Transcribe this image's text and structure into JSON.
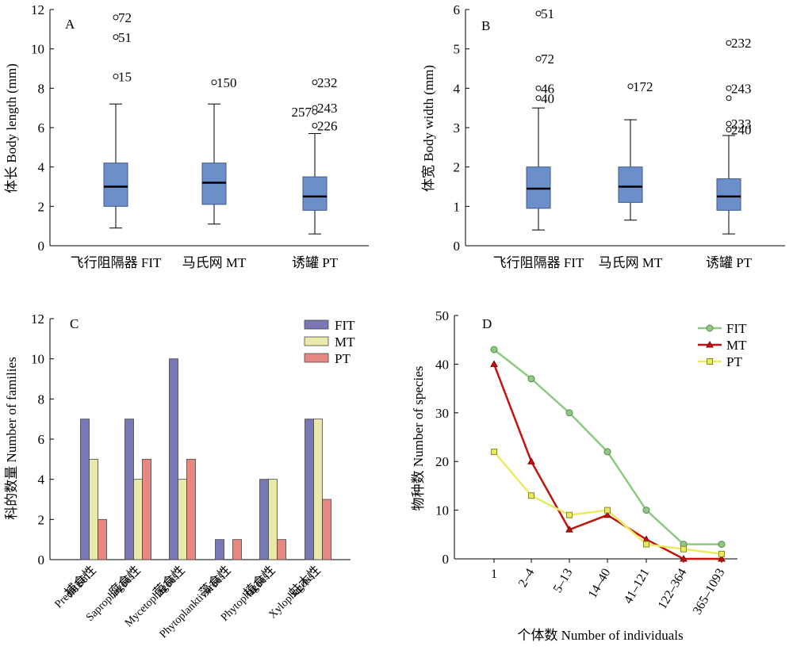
{
  "chart_data": [
    {
      "panel": "A",
      "type": "box",
      "ylabel": "体长 Body length (mm)",
      "ylim": [
        0,
        12
      ],
      "yticks": [
        "0",
        "2",
        "4",
        "6",
        "8",
        "10",
        "12"
      ],
      "categories": [
        "飞行阻隔器 FIT",
        "马氏网 MT",
        "诱罐 PT"
      ],
      "box_color": "#6b8fc9",
      "boxes": [
        {
          "whisker_low": 0.9,
          "q1": 2.0,
          "median": 3.0,
          "q3": 4.2,
          "whisker_high": 7.2
        },
        {
          "whisker_low": 1.1,
          "q1": 2.1,
          "median": 3.2,
          "q3": 4.2,
          "whisker_high": 7.2
        },
        {
          "whisker_low": 0.6,
          "q1": 1.8,
          "median": 2.5,
          "q3": 3.5,
          "whisker_high": 5.7
        }
      ],
      "outliers": [
        {
          "cat": 0,
          "y": 11.6,
          "label": "72"
        },
        {
          "cat": 0,
          "y": 10.6,
          "label": "51"
        },
        {
          "cat": 0,
          "y": 8.6,
          "label": "15"
        },
        {
          "cat": 1,
          "y": 8.3,
          "label": "150"
        },
        {
          "cat": 2,
          "y": 8.3,
          "label": "232"
        },
        {
          "cat": 2,
          "y": 7.0,
          "label": "243"
        },
        {
          "cat": 2,
          "y": 6.8,
          "label": "257"
        },
        {
          "cat": 2,
          "y": 6.1,
          "label": "226"
        }
      ]
    },
    {
      "panel": "B",
      "type": "box",
      "ylabel": "体宽 Body width (mm)",
      "ylim": [
        0,
        6
      ],
      "yticks": [
        "0",
        "1",
        "2",
        "3",
        "4",
        "5",
        "6"
      ],
      "categories": [
        "飞行阻隔器 FIT",
        "马氏网 MT",
        "诱罐 PT"
      ],
      "box_color": "#6b8fc9",
      "boxes": [
        {
          "whisker_low": 0.4,
          "q1": 0.95,
          "median": 1.45,
          "q3": 2.0,
          "whisker_high": 3.5
        },
        {
          "whisker_low": 0.65,
          "q1": 1.1,
          "median": 1.5,
          "q3": 2.0,
          "whisker_high": 3.2
        },
        {
          "whisker_low": 0.3,
          "q1": 0.9,
          "median": 1.25,
          "q3": 1.7,
          "whisker_high": 2.8
        }
      ],
      "outliers": [
        {
          "cat": 0,
          "y": 5.9,
          "label": "51"
        },
        {
          "cat": 0,
          "y": 4.75,
          "label": "72"
        },
        {
          "cat": 0,
          "y": 4.0,
          "label": "46"
        },
        {
          "cat": 0,
          "y": 3.75,
          "label": "40"
        },
        {
          "cat": 1,
          "y": 4.05,
          "label": "172"
        },
        {
          "cat": 2,
          "y": 5.15,
          "label": "232"
        },
        {
          "cat": 2,
          "y": 4.0,
          "label": "243"
        },
        {
          "cat": 2,
          "y": 3.75,
          "label": ""
        },
        {
          "cat": 2,
          "y": 3.1,
          "label": "233"
        },
        {
          "cat": 2,
          "y": 2.95,
          "label": "240"
        }
      ]
    },
    {
      "panel": "C",
      "type": "bar",
      "ylabel": "科的数量 Number of families",
      "ylim": [
        0,
        12
      ],
      "yticks": [
        "0",
        "2",
        "4",
        "6",
        "8",
        "10",
        "12"
      ],
      "categories": [
        {
          "zh": "捕食性",
          "en": "Predatism"
        },
        {
          "zh": "腐食性",
          "en": "Saprophagous"
        },
        {
          "zh": "菌食性",
          "en": "Mycetophagous"
        },
        {
          "zh": "藻食性",
          "en": "Phytoplanktivorous"
        },
        {
          "zh": "植食性",
          "en": "Phytophagous"
        },
        {
          "zh": "蛀木性",
          "en": "Xylophagous"
        }
      ],
      "series": [
        {
          "name": "FIT",
          "color": "#7a78b4",
          "values": [
            7,
            7,
            10,
            1,
            4,
            7
          ]
        },
        {
          "name": "MT",
          "color": "#e9e9a9",
          "values": [
            5,
            4,
            4,
            0,
            4,
            7
          ]
        },
        {
          "name": "PT",
          "color": "#e88882",
          "values": [
            2,
            5,
            5,
            1,
            1,
            3
          ]
        }
      ],
      "legend": "top-right"
    },
    {
      "panel": "D",
      "type": "line",
      "xlabel": "个体数 Number of individuals",
      "ylabel": "物种数 Number of species",
      "ylim": [
        0,
        50
      ],
      "yticks": [
        "0",
        "10",
        "20",
        "30",
        "40",
        "50"
      ],
      "categories": [
        "1",
        "2–4",
        "5–13",
        "14–40",
        "41–121",
        "122–364",
        "365–1093"
      ],
      "series": [
        {
          "name": "FIT",
          "color": "#8ec983",
          "marker": "circle",
          "values": [
            43,
            37,
            30,
            22,
            10,
            3,
            3
          ]
        },
        {
          "name": "MT",
          "color": "#c0140c",
          "marker": "triangle",
          "values": [
            40,
            20,
            6,
            9,
            4,
            0,
            0
          ]
        },
        {
          "name": "PT",
          "color": "#eaea60",
          "marker": "square",
          "values": [
            22,
            13,
            9,
            10,
            3,
            2,
            1
          ]
        }
      ],
      "legend": "top-right"
    }
  ]
}
